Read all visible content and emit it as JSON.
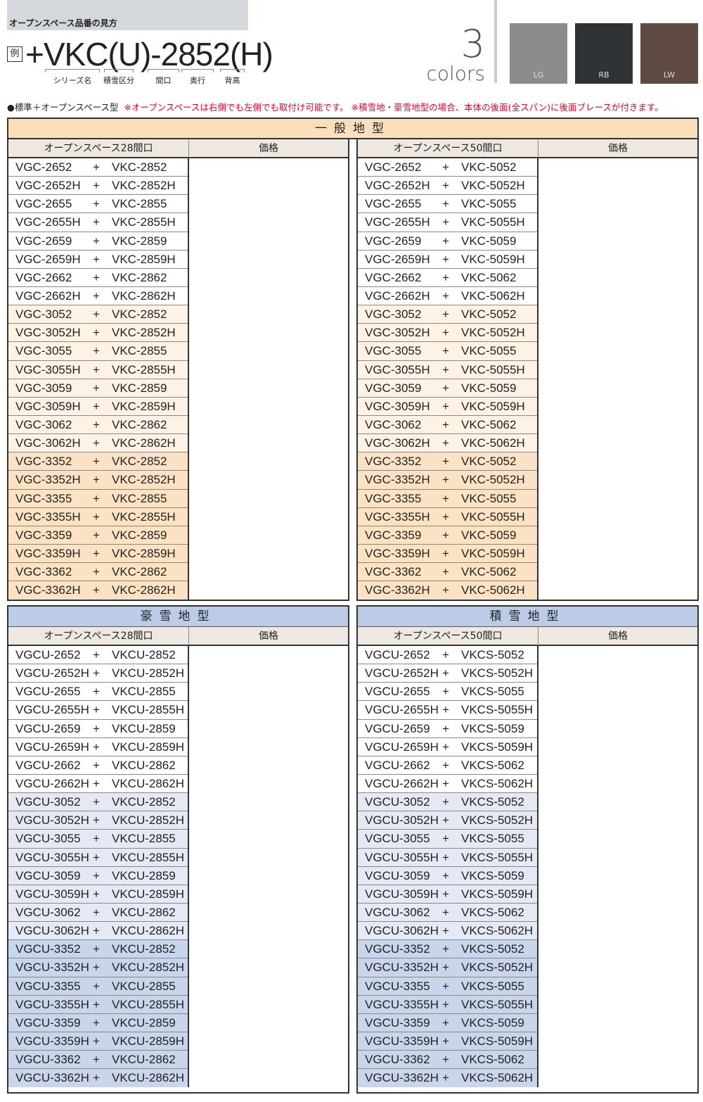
{
  "header": {
    "title": "オープンスペース品番の見方",
    "example_label": "例",
    "code": "+VKC(U)-2852(H)",
    "parts": [
      "シリーズ名",
      "積雪区分",
      "間口",
      "奥行",
      "背高"
    ],
    "colors_count": "3",
    "colors_word": "colors",
    "swatches": [
      {
        "label": "LG",
        "color": "#8c8c8c"
      },
      {
        "label": "RB",
        "color": "#2f3335"
      },
      {
        "label": "LW",
        "color": "#5e4a40"
      }
    ]
  },
  "note": {
    "type": "●標準＋オープンスペース型",
    "warning": "※オープンスペースは右側でも左側でも取付け可能です。 ※積雪地・豪雪地型の場合、本体の後面(全スパン)に後面ブレースが付きます。"
  },
  "colors": {
    "cream_header": "#fbdfbb",
    "cream_light": "#fdf2e3",
    "cream_dark": "#fbe2c4",
    "blue_header": "#bccbe6",
    "blue_light": "#e4e9f3",
    "blue_dark": "#c9d5ea"
  },
  "tables": [
    {
      "section": "一般地型",
      "col1": "オープンスペース28間口",
      "col2": "価格",
      "theme": "cream",
      "rows": [
        [
          "VGC-2652",
          "VKC-2852"
        ],
        [
          "VGC-2652H",
          "VKC-2852H"
        ],
        [
          "VGC-2655",
          "VKC-2855"
        ],
        [
          "VGC-2655H",
          "VKC-2855H"
        ],
        [
          "VGC-2659",
          "VKC-2859"
        ],
        [
          "VGC-2659H",
          "VKC-2859H"
        ],
        [
          "VGC-2662",
          "VKC-2862"
        ],
        [
          "VGC-2662H",
          "VKC-2862H"
        ],
        [
          "VGC-3052",
          "VKC-2852"
        ],
        [
          "VGC-3052H",
          "VKC-2852H"
        ],
        [
          "VGC-3055",
          "VKC-2855"
        ],
        [
          "VGC-3055H",
          "VKC-2855H"
        ],
        [
          "VGC-3059",
          "VKC-2859"
        ],
        [
          "VGC-3059H",
          "VKC-2859H"
        ],
        [
          "VGC-3062",
          "VKC-2862"
        ],
        [
          "VGC-3062H",
          "VKC-2862H"
        ],
        [
          "VGC-3352",
          "VKC-2852"
        ],
        [
          "VGC-3352H",
          "VKC-2852H"
        ],
        [
          "VGC-3355",
          "VKC-2855"
        ],
        [
          "VGC-3355H",
          "VKC-2855H"
        ],
        [
          "VGC-3359",
          "VKC-2859"
        ],
        [
          "VGC-3359H",
          "VKC-2859H"
        ],
        [
          "VGC-3362",
          "VKC-2862"
        ],
        [
          "VGC-3362H",
          "VKC-2862H"
        ]
      ]
    },
    {
      "section": "",
      "col1": "オープンスペース50間口",
      "col2": "価格",
      "theme": "cream",
      "rows": [
        [
          "VGC-2652",
          "VKC-5052"
        ],
        [
          "VGC-2652H",
          "VKC-5052H"
        ],
        [
          "VGC-2655",
          "VKC-5055"
        ],
        [
          "VGC-2655H",
          "VKC-5055H"
        ],
        [
          "VGC-2659",
          "VKC-5059"
        ],
        [
          "VGC-2659H",
          "VKC-5059H"
        ],
        [
          "VGC-2662",
          "VKC-5062"
        ],
        [
          "VGC-2662H",
          "VKC-5062H"
        ],
        [
          "VGC-3052",
          "VKC-5052"
        ],
        [
          "VGC-3052H",
          "VKC-5052H"
        ],
        [
          "VGC-3055",
          "VKC-5055"
        ],
        [
          "VGC-3055H",
          "VKC-5055H"
        ],
        [
          "VGC-3059",
          "VKC-5059"
        ],
        [
          "VGC-3059H",
          "VKC-5059H"
        ],
        [
          "VGC-3062",
          "VKC-5062"
        ],
        [
          "VGC-3062H",
          "VKC-5062H"
        ],
        [
          "VGC-3352",
          "VKC-5052"
        ],
        [
          "VGC-3352H",
          "VKC-5052H"
        ],
        [
          "VGC-3355",
          "VKC-5055"
        ],
        [
          "VGC-3355H",
          "VKC-5055H"
        ],
        [
          "VGC-3359",
          "VKC-5059"
        ],
        [
          "VGC-3359H",
          "VKC-5059H"
        ],
        [
          "VGC-3362",
          "VKC-5062"
        ],
        [
          "VGC-3362H",
          "VKC-5062H"
        ]
      ]
    },
    {
      "section": "豪雪地型",
      "col1": "オープンスペース28間口",
      "col2": "価格",
      "theme": "blue",
      "rows": [
        [
          "VGCU-2652",
          "VKCU-2852"
        ],
        [
          "VGCU-2652H",
          "VKCU-2852H"
        ],
        [
          "VGCU-2655",
          "VKCU-2855"
        ],
        [
          "VGCU-2655H",
          "VKCU-2855H"
        ],
        [
          "VGCU-2659",
          "VKCU-2859"
        ],
        [
          "VGCU-2659H",
          "VKCU-2859H"
        ],
        [
          "VGCU-2662",
          "VKCU-2862"
        ],
        [
          "VGCU-2662H",
          "VKCU-2862H"
        ],
        [
          "VGCU-3052",
          "VKCU-2852"
        ],
        [
          "VGCU-3052H",
          "VKCU-2852H"
        ],
        [
          "VGCU-3055",
          "VKCU-2855"
        ],
        [
          "VGCU-3055H",
          "VKCU-2855H"
        ],
        [
          "VGCU-3059",
          "VKCU-2859"
        ],
        [
          "VGCU-3059H",
          "VKCU-2859H"
        ],
        [
          "VGCU-3062",
          "VKCU-2862"
        ],
        [
          "VGCU-3062H",
          "VKCU-2862H"
        ],
        [
          "VGCU-3352",
          "VKCU-2852"
        ],
        [
          "VGCU-3352H",
          "VKCU-2852H"
        ],
        [
          "VGCU-3355",
          "VKCU-2855"
        ],
        [
          "VGCU-3355H",
          "VKCU-2855H"
        ],
        [
          "VGCU-3359",
          "VKCU-2859"
        ],
        [
          "VGCU-3359H",
          "VKCU-2859H"
        ],
        [
          "VGCU-3362",
          "VKCU-2862"
        ],
        [
          "VGCU-3362H",
          "VKCU-2862H"
        ]
      ]
    },
    {
      "section": "積雪地型",
      "col1": "オープンスペース50間口",
      "col2": "価格",
      "theme": "blue",
      "rows": [
        [
          "VGCU-2652",
          "VKCS-5052"
        ],
        [
          "VGCU-2652H",
          "VKCS-5052H"
        ],
        [
          "VGCU-2655",
          "VKCS-5055"
        ],
        [
          "VGCU-2655H",
          "VKCS-5055H"
        ],
        [
          "VGCU-2659",
          "VKCS-5059"
        ],
        [
          "VGCU-2659H",
          "VKCS-5059H"
        ],
        [
          "VGCU-2662",
          "VKCS-5062"
        ],
        [
          "VGCU-2662H",
          "VKCS-5062H"
        ],
        [
          "VGCU-3052",
          "VKCS-5052"
        ],
        [
          "VGCU-3052H",
          "VKCS-5052H"
        ],
        [
          "VGCU-3055",
          "VKCS-5055"
        ],
        [
          "VGCU-3055H",
          "VKCS-5055H"
        ],
        [
          "VGCU-3059",
          "VKCS-5059"
        ],
        [
          "VGCU-3059H",
          "VKCS-5059H"
        ],
        [
          "VGCU-3062",
          "VKCS-5062"
        ],
        [
          "VGCU-3062H",
          "VKCS-5062H"
        ],
        [
          "VGCU-3352",
          "VKCS-5052"
        ],
        [
          "VGCU-3352H",
          "VKCS-5052H"
        ],
        [
          "VGCU-3355",
          "VKCS-5055"
        ],
        [
          "VGCU-3355H",
          "VKCS-5055H"
        ],
        [
          "VGCU-3359",
          "VKCS-5059"
        ],
        [
          "VGCU-3359H",
          "VKCS-5059H"
        ],
        [
          "VGCU-3362",
          "VKCS-5062"
        ],
        [
          "VGCU-3362H",
          "VKCS-5062H"
        ]
      ]
    }
  ],
  "plus": "+"
}
